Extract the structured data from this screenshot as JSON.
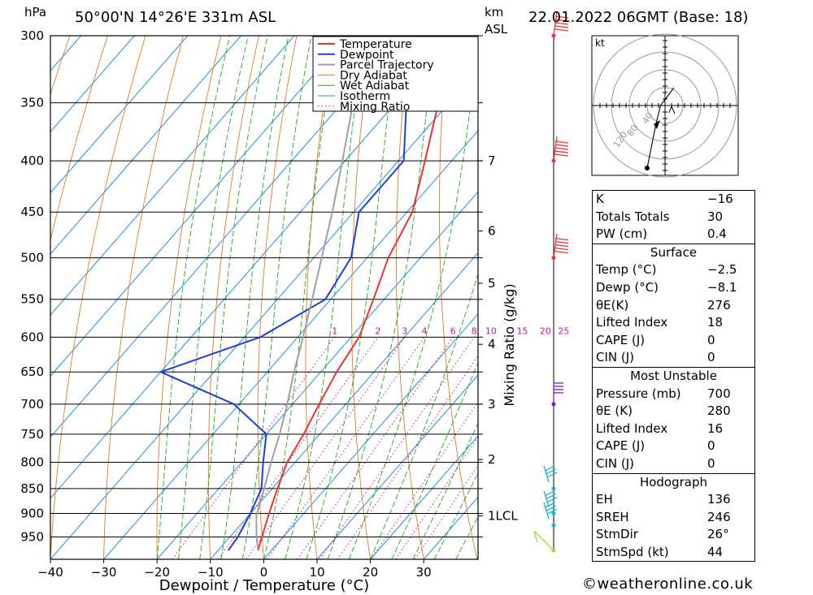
{
  "header": {
    "location": "50°00'N 14°26'E 331m ASL",
    "datetime": "22.01.2022 06GMT (Base: 18)",
    "left_unit": "hPa",
    "right_unit_line1": "km",
    "right_unit_line2": "ASL"
  },
  "chart_data": {
    "type": "line",
    "xlabel": "Dewpoint / Temperature (°C)",
    "ylabel": "hPa",
    "y2label": "Mixing Ratio (g/kg)",
    "xlim": [
      -40,
      40
    ],
    "ylim": [
      1000,
      300
    ],
    "y_scale": "log",
    "x_ticks": [
      -40,
      -30,
      -20,
      -10,
      0,
      10,
      20,
      30
    ],
    "pressure_ticks": [
      300,
      350,
      400,
      450,
      500,
      550,
      600,
      650,
      700,
      750,
      800,
      850,
      900,
      950
    ],
    "height_ticks": [
      {
        "label": "7",
        "p": 400
      },
      {
        "label": "6",
        "p": 470
      },
      {
        "label": "5",
        "p": 530
      },
      {
        "label": "4",
        "p": 610
      },
      {
        "label": "3",
        "p": 700
      },
      {
        "label": "2",
        "p": 795
      },
      {
        "label": "1LCL",
        "p": 905
      }
    ],
    "mixing_ratio_labels": [
      "1",
      "2",
      "3",
      "4",
      "6",
      "8",
      "10",
      "15",
      "20",
      "25"
    ],
    "legend": [
      "Temperature",
      "Dewpoint",
      "Parcel Trajectory",
      "Dry Adiabat",
      "Wet Adiabat",
      "Isotherm",
      "Mixing Ratio"
    ],
    "legend_position": "top-right",
    "colors": {
      "temperature": "#e8332e",
      "dewpoint": "#1f3fd8",
      "parcel": "#a0a0a0",
      "dry_adiabat": "#e07a20",
      "wet_adiabat": "#1ea81e",
      "isotherm": "#1e90e0",
      "mixing_ratio": "#c01890"
    },
    "series": [
      {
        "name": "Temperature",
        "points": [
          {
            "p": 980,
            "t": -2.5
          },
          {
            "p": 950,
            "t": -4
          },
          {
            "p": 900,
            "t": -6.5
          },
          {
            "p": 850,
            "t": -9
          },
          {
            "p": 800,
            "t": -11.5
          },
          {
            "p": 750,
            "t": -13
          },
          {
            "p": 700,
            "t": -15
          },
          {
            "p": 650,
            "t": -17
          },
          {
            "p": 600,
            "t": -18.5
          },
          {
            "p": 550,
            "t": -22
          },
          {
            "p": 500,
            "t": -26
          },
          {
            "p": 450,
            "t": -29
          },
          {
            "p": 400,
            "t": -35
          },
          {
            "p": 350,
            "t": -42
          },
          {
            "p": 300,
            "t": -50
          }
        ]
      },
      {
        "name": "Dewpoint",
        "points": [
          {
            "p": 980,
            "t": -8.1
          },
          {
            "p": 950,
            "t": -8.5
          },
          {
            "p": 900,
            "t": -10
          },
          {
            "p": 850,
            "t": -12
          },
          {
            "p": 800,
            "t": -16
          },
          {
            "p": 750,
            "t": -20
          },
          {
            "p": 700,
            "t": -31
          },
          {
            "p": 650,
            "t": -50
          },
          {
            "p": 600,
            "t": -37
          },
          {
            "p": 550,
            "t": -31
          },
          {
            "p": 500,
            "t": -33
          },
          {
            "p": 450,
            "t": -39
          },
          {
            "p": 400,
            "t": -39
          },
          {
            "p": 350,
            "t": -48
          },
          {
            "p": 300,
            "t": -58
          }
        ]
      },
      {
        "name": "Parcel Trajectory",
        "points": [
          {
            "p": 980,
            "t": -2.5
          },
          {
            "p": 950,
            "t": -5
          },
          {
            "p": 905,
            "t": -8.5
          },
          {
            "p": 850,
            "t": -11.5
          },
          {
            "p": 800,
            "t": -14.5
          },
          {
            "p": 750,
            "t": -17.5
          },
          {
            "p": 700,
            "t": -21
          },
          {
            "p": 650,
            "t": -25
          },
          {
            "p": 600,
            "t": -29
          },
          {
            "p": 550,
            "t": -33.5
          },
          {
            "p": 500,
            "t": -38.5
          },
          {
            "p": 450,
            "t": -44
          },
          {
            "p": 400,
            "t": -50.5
          },
          {
            "p": 350,
            "t": -58
          },
          {
            "p": 300,
            "t": -66
          }
        ]
      }
    ],
    "wind_barbs": [
      {
        "p": 300,
        "color": "#e8332e"
      },
      {
        "p": 400,
        "color": "#e8332e"
      },
      {
        "p": 500,
        "color": "#e8332e"
      },
      {
        "p": 700,
        "color": "#7a18c8"
      },
      {
        "p": 850,
        "color": "#18b8c8"
      },
      {
        "p": 900,
        "color": "#18b8c8"
      },
      {
        "p": 925,
        "color": "#18b8c8"
      },
      {
        "p": 980,
        "color": "#90e030"
      }
    ],
    "hodograph": {
      "unit": "kt",
      "ring_labels": [
        "40",
        "80",
        "120"
      ],
      "points": [
        [
          2,
          4
        ],
        [
          -1,
          0
        ],
        [
          -2,
          -4
        ],
        [
          -4,
          -14
        ]
      ]
    }
  },
  "indices": {
    "general": [
      {
        "label": "K",
        "value": "-16"
      },
      {
        "label": "Totals Totals",
        "value": "30"
      },
      {
        "label": "PW (cm)",
        "value": "0.4"
      }
    ],
    "surface": {
      "title": "Surface",
      "rows": [
        {
          "label": "Temp (°C)",
          "value": "-2.5"
        },
        {
          "label": "Dewp (°C)",
          "value": "-8.1"
        },
        {
          "label": "θE(K)",
          "value": "276"
        },
        {
          "label": "Lifted Index",
          "value": "18"
        },
        {
          "label": "CAPE (J)",
          "value": "0"
        },
        {
          "label": "CIN (J)",
          "value": "0"
        }
      ]
    },
    "most_unstable": {
      "title": "Most Unstable",
      "rows": [
        {
          "label": "Pressure (mb)",
          "value": "700"
        },
        {
          "label": "θE (K)",
          "value": "280"
        },
        {
          "label": "Lifted Index",
          "value": "16"
        },
        {
          "label": "CAPE (J)",
          "value": "0"
        },
        {
          "label": "CIN (J)",
          "value": "0"
        }
      ]
    },
    "hodograph": {
      "title": "Hodograph",
      "rows": [
        {
          "label": "EH",
          "value": "136"
        },
        {
          "label": "SREH",
          "value": "246"
        },
        {
          "label": "StmDir",
          "value": "26°"
        },
        {
          "label": "StmSpd (kt)",
          "value": "44"
        }
      ]
    }
  },
  "footer": {
    "copyright": "©weatheronline.co.uk"
  }
}
